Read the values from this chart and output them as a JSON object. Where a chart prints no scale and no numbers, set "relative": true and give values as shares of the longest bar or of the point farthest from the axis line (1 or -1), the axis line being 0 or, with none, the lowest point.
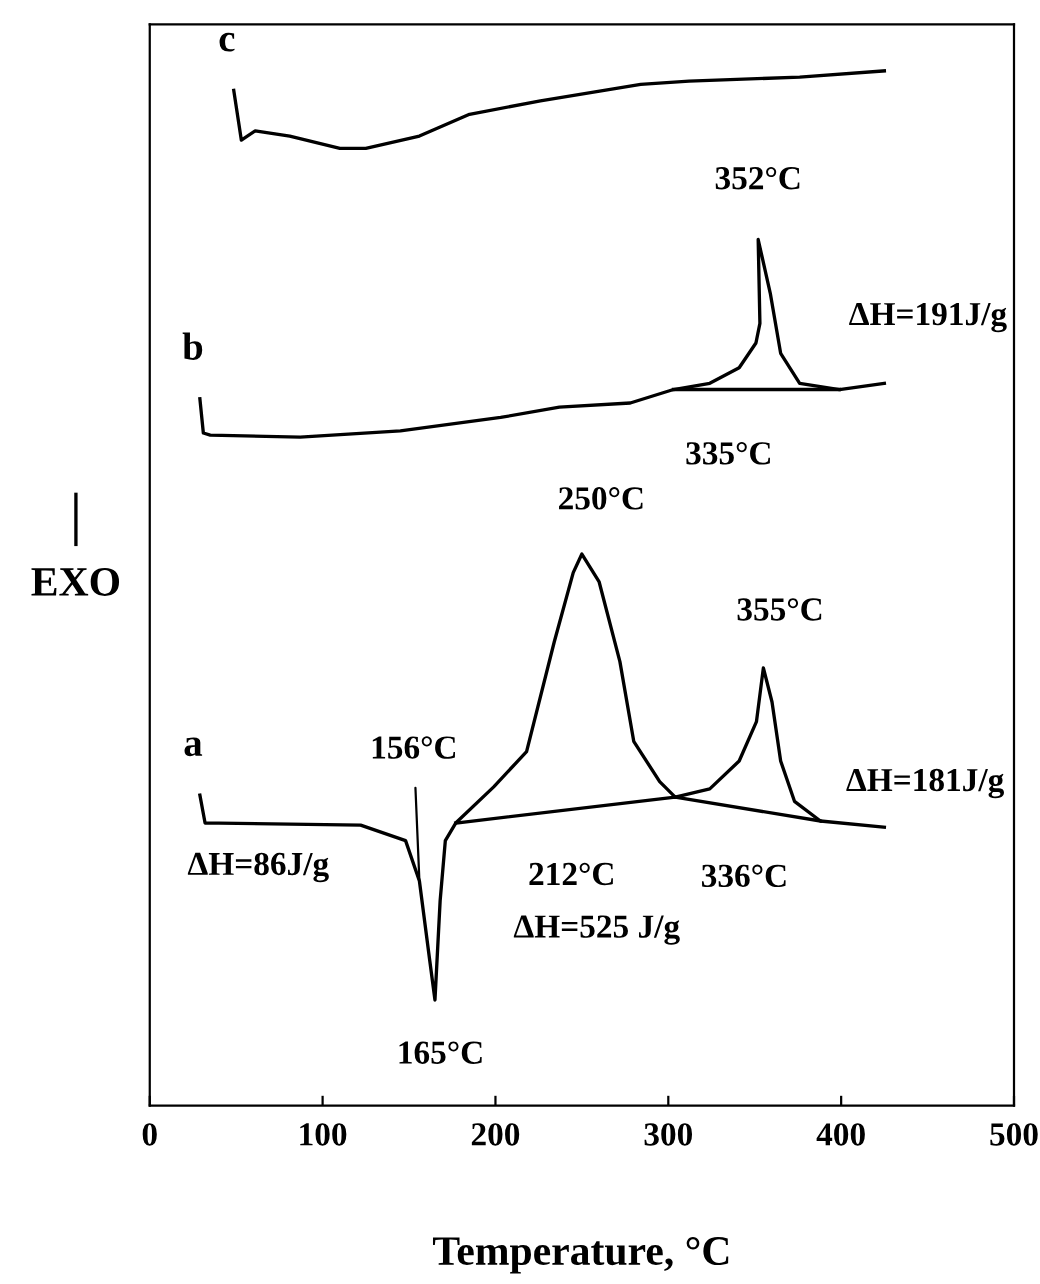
{
  "chart_data": {
    "type": "line",
    "relative": true,
    "xlabel": "Temperature, °C",
    "ylabel": "EXO",
    "xlim": [
      0,
      500
    ],
    "xticks": [
      0,
      100,
      200,
      300,
      400,
      500
    ],
    "series": [
      {
        "name": "c",
        "color": "#000000",
        "x": [
          48.6,
          53,
          61,
          81,
          110,
          125,
          156,
          185,
          226,
          284,
          312,
          376,
          425
        ],
        "values": [
          0.981,
          0.933,
          0.942,
          0.937,
          0.925,
          0.925,
          0.937,
          0.958,
          0.971,
          0.987,
          0.99,
          0.994,
          1.0
        ]
      },
      {
        "name": "b",
        "color": "#000000",
        "x": [
          29,
          31,
          35,
          87,
          145,
          203,
          237,
          278,
          303,
          324,
          341,
          350.7,
          353,
          352,
          359,
          365,
          376,
          399,
          425
        ],
        "values": [
          0.683,
          0.65,
          0.648,
          0.646,
          0.652,
          0.665,
          0.675,
          0.679,
          0.692,
          0.698,
          0.713,
          0.737,
          0.756,
          0.837,
          0.785,
          0.727,
          0.698,
          0.692,
          0.698
        ]
      },
      {
        "name": "a",
        "color": "#000000",
        "x": [
          29,
          32,
          40,
          122,
          148,
          156,
          162,
          165,
          168,
          171,
          177,
          199,
          218,
          234,
          245,
          250,
          260,
          272,
          280,
          295,
          304,
          324,
          341,
          351,
          355,
          360,
          365,
          373,
          388,
          425
        ],
        "values": [
          0.3,
          0.273,
          0.273,
          0.271,
          0.256,
          0.217,
          0.14,
          0.102,
          0.198,
          0.256,
          0.273,
          0.308,
          0.342,
          0.448,
          0.515,
          0.533,
          0.506,
          0.429,
          0.352,
          0.313,
          0.298,
          0.306,
          0.333,
          0.371,
          0.423,
          0.39,
          0.333,
          0.294,
          0.275,
          0.269
        ]
      },
      {
        "color": "#000000",
        "x": [
          177,
          304,
          388
        ],
        "values": [
          0.273,
          0.298,
          0.275
        ]
      },
      {
        "color": "#000000",
        "x": [
          303,
          399
        ],
        "values": [
          0.692,
          0.692
        ]
      }
    ],
    "annotations": [
      {
        "text": "352°C",
        "x": 352,
        "y": 0.837
      },
      {
        "text": "ΔH=191J/g",
        "x": 365,
        "y": 0.727
      },
      {
        "text": "335°C",
        "x": 335,
        "y": 0.692
      },
      {
        "text": "250°C",
        "x": 250,
        "y": 0.533
      },
      {
        "text": "355°C",
        "x": 355,
        "y": 0.423
      },
      {
        "text": "156°C",
        "x": 156,
        "y": 0.217
      },
      {
        "text": "ΔH=181J/g",
        "x": 365,
        "y": 0.333
      },
      {
        "text": "ΔH=86J/g",
        "x": 156,
        "y": 0.217
      },
      {
        "text": "212°C",
        "x": 212,
        "y": 0.28
      },
      {
        "text": "ΔH=525 J/g",
        "x": 212,
        "y": 0.28
      },
      {
        "text": "336°C",
        "x": 336,
        "y": 0.289
      },
      {
        "text": "165°C",
        "x": 165,
        "y": 0.102
      }
    ]
  }
}
